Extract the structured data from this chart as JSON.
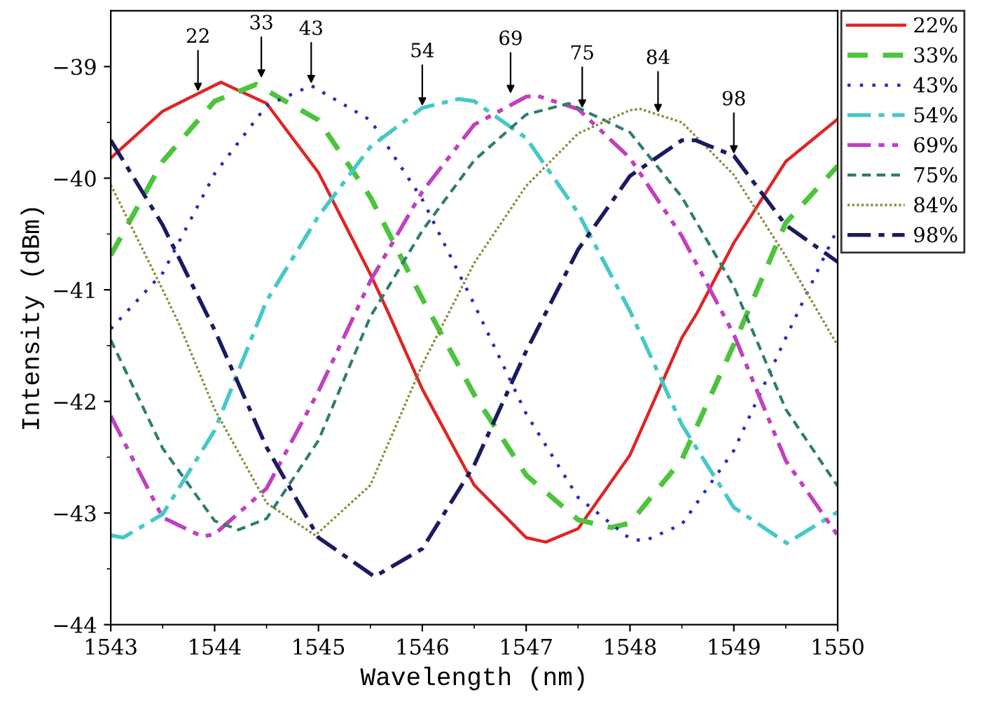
{
  "chart_data": {
    "type": "line",
    "xlabel": "Wavelength (nm)",
    "ylabel": "Intensity (dBm)",
    "xlim": [
      1543,
      1550
    ],
    "xticks": [
      1543,
      1544,
      1545,
      1546,
      1547,
      1548,
      1549,
      1550
    ],
    "ylim": [
      -44,
      -38.5
    ],
    "yticks": [
      -44,
      -43,
      -42,
      -41,
      -40,
      -39
    ],
    "grid": false,
    "legend": "top right",
    "marker": "none",
    "series": [
      {
        "name": "22%",
        "color": "#e02424",
        "line_style": "solid",
        "x": [
          1543,
          1543.5,
          1544.06,
          1544.5,
          1545,
          1545.5,
          1545.67,
          1546,
          1546.5,
          1547,
          1547.19,
          1547.5,
          1548,
          1548.5,
          1548.65,
          1549,
          1549.5,
          1550
        ],
        "values": [
          -39.82,
          -39.4,
          -39.14,
          -39.33,
          -39.95,
          -40.86,
          -41.2,
          -41.89,
          -42.75,
          -43.22,
          -43.26,
          -43.14,
          -42.48,
          -41.43,
          -41.2,
          -40.58,
          -39.85,
          -39.47
        ]
      },
      {
        "name": "33%",
        "color": "#4cc43c",
        "line_style": "dashed",
        "x": [
          1543,
          1543.5,
          1544,
          1544.4,
          1545,
          1545.5,
          1546,
          1546.5,
          1547,
          1547.5,
          1547.82,
          1548,
          1548.5,
          1549,
          1549.5,
          1550
        ],
        "values": [
          -40.69,
          -39.85,
          -39.31,
          -39.16,
          -39.48,
          -40.17,
          -41.08,
          -41.94,
          -42.66,
          -43.06,
          -43.13,
          -43.09,
          -42.52,
          -41.49,
          -40.4,
          -39.89
        ]
      },
      {
        "name": "43%",
        "color": "#2a2ab8",
        "line_style": "dotted",
        "x": [
          1543,
          1543.5,
          1544,
          1544.5,
          1544.93,
          1545.5,
          1546,
          1546.5,
          1547,
          1547.5,
          1548,
          1548.14,
          1548.5,
          1549,
          1549.5,
          1550
        ],
        "values": [
          -41.35,
          -40.85,
          -39.96,
          -39.35,
          -39.17,
          -39.48,
          -40.19,
          -41.13,
          -42.11,
          -42.86,
          -43.23,
          -43.25,
          -43.1,
          -42.44,
          -41.43,
          -40.45
        ]
      },
      {
        "name": "54%",
        "color": "#45c8c8",
        "line_style": "dashdot",
        "x": [
          1543,
          1543.12,
          1543.5,
          1544,
          1544.5,
          1545,
          1545.5,
          1546,
          1546.35,
          1546.5,
          1547,
          1547.5,
          1548,
          1548.5,
          1549,
          1549.51,
          1550
        ],
        "values": [
          -43.2,
          -43.22,
          -43.01,
          -42.26,
          -41.1,
          -40.34,
          -39.72,
          -39.37,
          -39.29,
          -39.31,
          -39.64,
          -40.31,
          -41.19,
          -42.21,
          -42.95,
          -43.27,
          -42.99
        ]
      },
      {
        "name": "69%",
        "color": "#c040c0",
        "line_style": "dashdotdot",
        "x": [
          1543,
          1543.5,
          1543.88,
          1544,
          1544.5,
          1545,
          1545.5,
          1546,
          1546.5,
          1547,
          1547.1,
          1547.5,
          1548,
          1548.5,
          1549,
          1549.5,
          1550
        ],
        "values": [
          -42.13,
          -43.04,
          -43.21,
          -43.19,
          -42.78,
          -41.91,
          -40.92,
          -40.12,
          -39.52,
          -39.27,
          -39.26,
          -39.38,
          -39.82,
          -40.52,
          -41.4,
          -42.53,
          -43.2
        ]
      },
      {
        "name": "75%",
        "color": "#2e7d6e",
        "line_style": "shortdash",
        "x": [
          1543,
          1543.5,
          1544,
          1544.23,
          1544.5,
          1545,
          1545.5,
          1546,
          1546.5,
          1547,
          1547.41,
          1548,
          1548.5,
          1549,
          1549.5,
          1550
        ],
        "values": [
          -41.45,
          -42.42,
          -43.07,
          -43.15,
          -43.05,
          -42.35,
          -41.24,
          -40.47,
          -39.84,
          -39.43,
          -39.33,
          -39.59,
          -40.17,
          -40.97,
          -42.07,
          -42.76
        ]
      },
      {
        "name": "84%",
        "color": "#8b8b3c",
        "line_style": "densedot",
        "x": [
          1543,
          1543.5,
          1543.65,
          1544,
          1544.5,
          1544.97,
          1545.5,
          1546,
          1546.5,
          1547,
          1547.5,
          1548,
          1548.1,
          1548.5,
          1549,
          1549.5,
          1550
        ],
        "values": [
          -40.06,
          -41.0,
          -41.29,
          -42.07,
          -42.91,
          -43.2,
          -42.75,
          -41.67,
          -40.76,
          -40.07,
          -39.6,
          -39.39,
          -39.38,
          -39.5,
          -39.97,
          -40.7,
          -41.5
        ]
      },
      {
        "name": "98%",
        "color": "#1b1b60",
        "line_style": "dashdot",
        "x": [
          1543,
          1543.5,
          1544,
          1544.5,
          1545,
          1545.54,
          1546,
          1546.5,
          1547,
          1547.5,
          1548,
          1548.5,
          1548.63,
          1549,
          1549.5,
          1550
        ],
        "values": [
          -39.66,
          -40.42,
          -41.36,
          -42.41,
          -43.22,
          -43.57,
          -43.32,
          -42.57,
          -41.55,
          -40.64,
          -39.98,
          -39.66,
          -39.66,
          -39.8,
          -40.42,
          -40.75
        ]
      }
    ],
    "annotations": [
      {
        "text": "22",
        "x": 1543.84,
        "y": -39.24
      },
      {
        "text": "33",
        "x": 1544.45,
        "y": -39.12
      },
      {
        "text": "43",
        "x": 1544.93,
        "y": -39.17
      },
      {
        "text": "54",
        "x": 1546,
        "y": -39.37
      },
      {
        "text": "69",
        "x": 1546.85,
        "y": -39.26
      },
      {
        "text": "75",
        "x": 1547.54,
        "y": -39.39
      },
      {
        "text": "84",
        "x": 1548.27,
        "y": -39.43
      },
      {
        "text": "98",
        "x": 1549,
        "y": -39.8
      }
    ]
  }
}
